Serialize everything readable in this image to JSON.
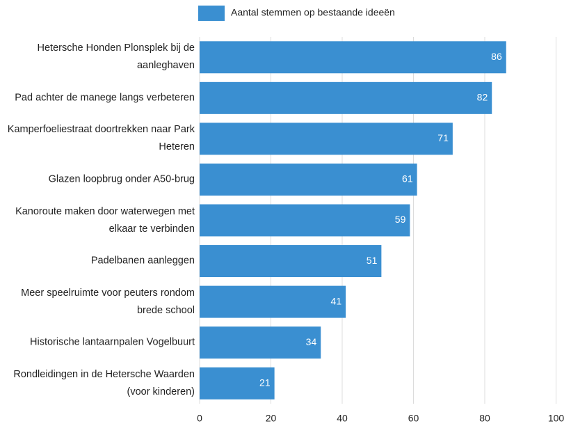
{
  "chart_data": {
    "type": "hbar",
    "legend": "Aantal stemmen op bestaande ideeën",
    "categories": [
      "Hetersche Honden Plonsplek bij de aanleghaven",
      "Pad achter de manege langs verbeteren",
      "Kamperfoeliestraat doortrekken naar Park Heteren",
      "Glazen loopbrug onder A50-brug",
      "Kanoroute maken door waterwegen met elkaar te verbinden",
      "Padelbanen aanleggen",
      "Meer speelruimte voor peuters rondom brede school",
      "Historische lantaarnpalen Vogelbuurt",
      "Rondleidingen in de Hetersche Waarden (voor kinderen)"
    ],
    "values": [
      86,
      82,
      71,
      61,
      59,
      51,
      41,
      34,
      21
    ],
    "color": "#3a8fd1",
    "xlim": [
      0,
      100
    ],
    "xticks": [
      0,
      20,
      40,
      60,
      80,
      100
    ],
    "grid": true
  }
}
